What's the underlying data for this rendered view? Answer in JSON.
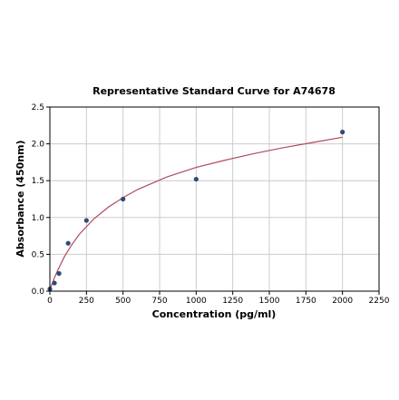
{
  "chart_data": {
    "type": "scatter",
    "title": "Representative Standard Curve for A74678",
    "xlabel": "Concentration (pg/ml)",
    "ylabel": "Absorbance (450nm)",
    "xlim": [
      0,
      2250
    ],
    "ylim": [
      0,
      2.5
    ],
    "xticks": [
      0,
      250,
      500,
      750,
      1000,
      1250,
      1500,
      1750,
      2000,
      2250
    ],
    "yticks": [
      0.0,
      0.5,
      1.0,
      1.5,
      2.0,
      2.5
    ],
    "xtick_labels": [
      "0",
      "250",
      "500",
      "750",
      "1000",
      "1250",
      "1500",
      "1750",
      "2000",
      "2250"
    ],
    "ytick_labels": [
      "0.0",
      "0.5",
      "1.0",
      "1.5",
      "2.0",
      "2.5"
    ],
    "grid": true,
    "points": {
      "x": [
        0,
        31.25,
        62.5,
        125,
        250,
        500,
        1000,
        2000
      ],
      "y": [
        0.03,
        0.11,
        0.24,
        0.65,
        0.96,
        1.25,
        1.52,
        2.16
      ]
    },
    "fit_curve": {
      "x": [
        0,
        25,
        50,
        100,
        150,
        200,
        300,
        400,
        500,
        600,
        800,
        1000,
        1200,
        1400,
        1600,
        1800,
        2000
      ],
      "y": [
        0.02,
        0.15,
        0.27,
        0.47,
        0.63,
        0.77,
        0.98,
        1.14,
        1.27,
        1.38,
        1.55,
        1.68,
        1.78,
        1.87,
        1.95,
        2.02,
        2.09
      ]
    },
    "colors": {
      "points": "#2e4a7a",
      "curve": "#b04a5e"
    }
  }
}
